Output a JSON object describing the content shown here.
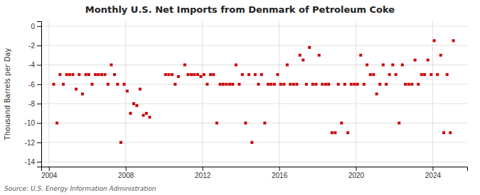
{
  "chart_data": {
    "type": "scatter",
    "title": "Monthly U.S. Net Imports from Denmark of Petroleum Coke",
    "ylabel": "Thousand Barrels per Day",
    "annotations": [
      "Source: U.S. Energy Information Administration"
    ],
    "color": "#cc0000",
    "marker": "square",
    "grid": true,
    "xlim": [
      2003.6,
      2025.8
    ],
    "xticks": [
      2004,
      2008,
      2012,
      2016,
      2020,
      2024
    ],
    "ylim": [
      -14.5,
      0.5
    ],
    "yticks": [
      0,
      -2,
      -4,
      -6,
      -8,
      -10,
      -12,
      -14
    ],
    "x": [
      2004.25,
      2004.42,
      2004.58,
      2004.75,
      2004.92,
      2005.08,
      2005.25,
      2005.42,
      2005.58,
      2005.75,
      2005.92,
      2006.08,
      2006.25,
      2006.42,
      2006.58,
      2006.75,
      2006.92,
      2007.08,
      2007.25,
      2007.42,
      2007.58,
      2007.75,
      2007.92,
      2008.08,
      2008.25,
      2008.42,
      2008.58,
      2008.75,
      2008.92,
      2009.08,
      2009.25,
      2010.08,
      2010.25,
      2010.42,
      2010.58,
      2010.75,
      2011.08,
      2011.25,
      2011.42,
      2011.58,
      2011.75,
      2011.92,
      2012.08,
      2012.25,
      2012.42,
      2012.58,
      2012.75,
      2012.92,
      2013.08,
      2013.25,
      2013.42,
      2013.58,
      2013.75,
      2013.92,
      2014.08,
      2014.25,
      2014.42,
      2014.58,
      2014.75,
      2014.92,
      2015.08,
      2015.25,
      2015.42,
      2015.58,
      2015.75,
      2015.92,
      2016.08,
      2016.25,
      2016.42,
      2016.58,
      2016.75,
      2016.92,
      2017.08,
      2017.25,
      2017.42,
      2017.58,
      2017.75,
      2017.92,
      2018.08,
      2018.25,
      2018.42,
      2018.58,
      2018.75,
      2018.92,
      2019.08,
      2019.25,
      2019.42,
      2019.58,
      2019.75,
      2019.92,
      2020.08,
      2020.25,
      2020.42,
      2020.58,
      2020.75,
      2020.92,
      2021.08,
      2021.25,
      2021.42,
      2021.58,
      2021.75,
      2021.92,
      2022.08,
      2022.25,
      2022.42,
      2022.58,
      2022.75,
      2022.92,
      2023.08,
      2023.25,
      2023.42,
      2023.58,
      2023.75,
      2023.92,
      2024.08,
      2024.25,
      2024.42,
      2024.58,
      2024.75,
      2024.92,
      2025.08
    ],
    "values": [
      -6.0,
      -10.0,
      -5.0,
      -6.0,
      -5.0,
      -5.0,
      -5.0,
      -6.5,
      -5.0,
      -7.0,
      -5.0,
      -5.0,
      -6.0,
      -5.0,
      -5.0,
      -5.0,
      -5.0,
      -6.0,
      -4.0,
      -5.0,
      -6.0,
      -12.0,
      -6.0,
      -6.7,
      -9.0,
      -8.0,
      -8.2,
      -6.5,
      -9.2,
      -9.0,
      -9.4,
      -5.0,
      -5.0,
      -5.0,
      -6.0,
      -5.2,
      -4.0,
      -5.0,
      -5.0,
      -5.0,
      -5.0,
      -5.2,
      -5.0,
      -6.0,
      -5.0,
      -5.0,
      -10.0,
      -6.0,
      -6.0,
      -6.0,
      -6.0,
      -6.0,
      -4.0,
      -6.0,
      -5.0,
      -10.0,
      -5.0,
      -12.0,
      -5.0,
      -6.0,
      -5.0,
      -10.0,
      -6.0,
      -6.0,
      -6.0,
      -5.0,
      -6.0,
      -6.0,
      -4.0,
      -6.0,
      -6.0,
      -6.0,
      -3.0,
      -3.5,
      -6.0,
      -2.2,
      -6.0,
      -6.0,
      -3.0,
      -6.0,
      -6.0,
      -6.0,
      -11.0,
      -11.0,
      -6.0,
      -10.0,
      -6.0,
      -11.0,
      -6.0,
      -6.0,
      -6.0,
      -3.0,
      -6.0,
      -4.0,
      -5.0,
      -5.0,
      -7.0,
      -6.0,
      -4.0,
      -6.0,
      -5.0,
      -4.0,
      -5.0,
      -10.0,
      -4.0,
      -6.0,
      -6.0,
      -6.0,
      -3.5,
      -6.0,
      -5.0,
      -5.0,
      -3.5,
      -5.0,
      -1.5,
      -5.0,
      -3.0,
      -11.0,
      -5.0,
      -11.0,
      -1.5
    ]
  }
}
